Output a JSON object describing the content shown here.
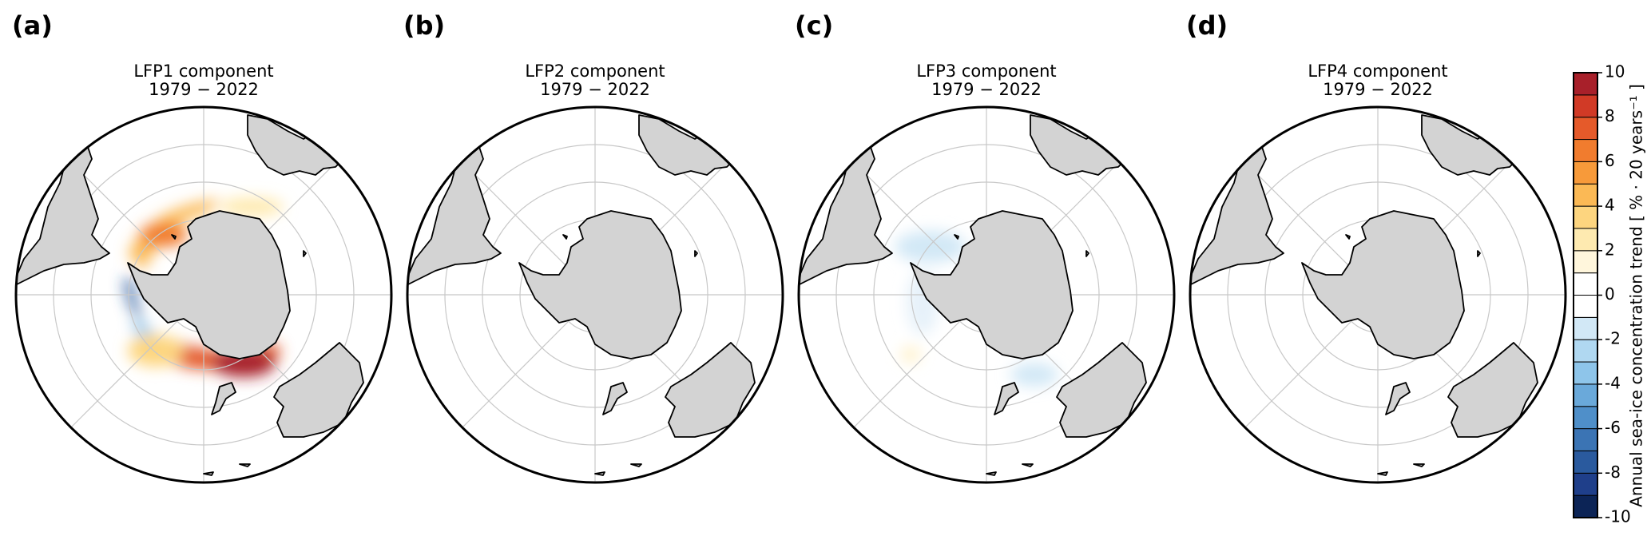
{
  "panels": [
    {
      "label": "(a)",
      "title": "LFP1 component",
      "period": "1979 − 2022"
    },
    {
      "label": "(b)",
      "title": "LFP2 component",
      "period": "1979 − 2022"
    },
    {
      "label": "(c)",
      "title": "LFP3 component",
      "period": "1979 − 2022"
    },
    {
      "label": "(d)",
      "title": "LFP4 component",
      "period": "1979 − 2022"
    }
  ],
  "colorbar": {
    "label": "Annual sea-ice concentration trend [ % · 20 years⁻¹ ]",
    "lim": [
      -10,
      10
    ],
    "ticks": [
      -10,
      -8,
      -6,
      -4,
      -2,
      0,
      2,
      4,
      6,
      8,
      10
    ],
    "colors": [
      "#0c2456",
      "#1f3f8a",
      "#2a5a9e",
      "#3b74b4",
      "#4f8fc9",
      "#6aa9da",
      "#8ec5ea",
      "#b0d8f1",
      "#d2e8f6",
      "#ffffff",
      "#ffffff",
      "#fff6dc",
      "#feeab0",
      "#fdd57f",
      "#fbb955",
      "#f79a3a",
      "#f17c2e",
      "#e55a2a",
      "#d13a26",
      "#a8202a"
    ]
  }
}
